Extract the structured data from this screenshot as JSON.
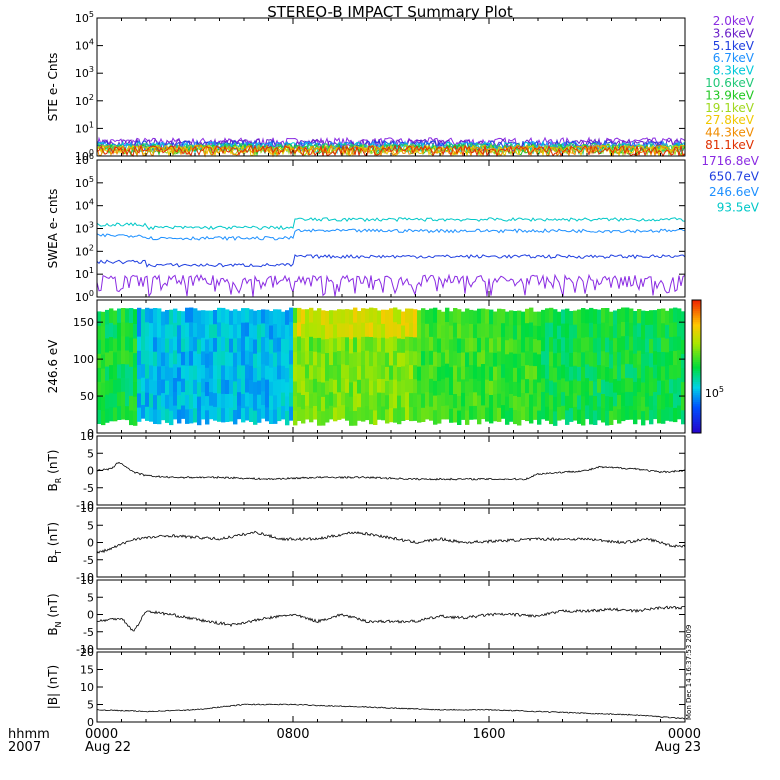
{
  "title": "STEREO-B IMPACT Summary Plot",
  "timestamp": "Mon Dec 14 16:37:53 2009",
  "time_axis": {
    "prefix": [
      "hhmm",
      "2007"
    ],
    "ticks": [
      {
        "t": 0,
        "label": "0000",
        "sub": "Aug 22"
      },
      {
        "t": 8,
        "label": "0800",
        "sub": ""
      },
      {
        "t": 16,
        "label": "1600",
        "sub": ""
      },
      {
        "t": 24,
        "label": "0000",
        "sub": "Aug 23"
      }
    ]
  },
  "chart_data": [
    {
      "id": "ste",
      "type": "line",
      "ylabel": "STE e- Cnts",
      "yscale": "log",
      "ylim": [
        1,
        100000
      ],
      "yticks": [
        {
          "v": 1,
          "label": "10^0"
        },
        {
          "v": 10,
          "label": "10^1"
        },
        {
          "v": 100,
          "label": "10^2"
        },
        {
          "v": 1000,
          "label": "10^3"
        },
        {
          "v": 10000,
          "label": "10^4"
        },
        {
          "v": 100000,
          "label": "10^5"
        }
      ],
      "series": [
        {
          "name": "2.0keV",
          "color": "#8a2be2",
          "level": 1.9
        },
        {
          "name": "3.6keV",
          "color": "#6a1fc8",
          "level": 1.7
        },
        {
          "name": "5.1keV",
          "color": "#1f3fe0",
          "level": 1.5
        },
        {
          "name": "6.7keV",
          "color": "#1e90ff",
          "level": 1.4
        },
        {
          "name": "8.3keV",
          "color": "#00c8d8",
          "level": 1.3
        },
        {
          "name": "10.6keV",
          "color": "#22c878",
          "level": 1.2
        },
        {
          "name": "13.9keV",
          "color": "#22c822",
          "level": 1.1
        },
        {
          "name": "19.1keV",
          "color": "#a0d81e",
          "level": 1.05
        },
        {
          "name": "27.8keV",
          "color": "#f0c800",
          "level": 1.02
        },
        {
          "name": "44.3keV",
          "color": "#f08c00",
          "level": 1.01
        },
        {
          "name": "81.1keV",
          "color": "#e03000",
          "level": 1.0
        }
      ]
    },
    {
      "id": "swea",
      "type": "line",
      "ylabel": "SWEA e- cnts",
      "yscale": "log",
      "ylim": [
        1,
        1000000
      ],
      "yticks": [
        {
          "v": 1,
          "label": "10^0"
        },
        {
          "v": 10,
          "label": "10^1"
        },
        {
          "v": 100,
          "label": "10^2"
        },
        {
          "v": 1000,
          "label": "10^3"
        },
        {
          "v": 10000,
          "label": "10^4"
        },
        {
          "v": 100000,
          "label": "10^5"
        },
        {
          "v": 1000000,
          "label": "10^6"
        }
      ],
      "series": [
        {
          "name": "1716.8eV",
          "color": "#8a2be2",
          "segments": [
            [
              0,
              8,
              5
            ],
            [
              8,
              24,
              5
            ]
          ]
        },
        {
          "name": "650.7eV",
          "color": "#1f3fe0",
          "segments": [
            [
              0,
              2,
              35
            ],
            [
              2,
              8,
              25
            ],
            [
              8,
              24,
              60
            ]
          ]
        },
        {
          "name": "246.6eV",
          "color": "#1e90ff",
          "segments": [
            [
              0,
              2,
              500
            ],
            [
              2,
              8,
              380
            ],
            [
              8,
              24,
              800
            ]
          ]
        },
        {
          "name": "93.5eV",
          "color": "#00c8c8",
          "segments": [
            [
              0,
              2,
              1500
            ],
            [
              2,
              8,
              1100
            ],
            [
              8,
              24,
              2500
            ]
          ]
        }
      ]
    },
    {
      "id": "pad",
      "type": "heatmap",
      "ylabel": "246.6 eV",
      "ylim": [
        0,
        180
      ],
      "yticks": [
        {
          "v": 0,
          "label": "0"
        },
        {
          "v": 50,
          "label": "50"
        },
        {
          "v": 100,
          "label": "100"
        },
        {
          "v": 150,
          "label": "150"
        }
      ],
      "colorbar_label": "10^5",
      "data_range": [
        10,
        170
      ]
    },
    {
      "id": "br",
      "type": "line",
      "ylabel": "B_R (nT)",
      "ylim": [
        -10,
        10
      ],
      "yticks": [
        {
          "v": -10,
          "label": "-10"
        },
        {
          "v": -5,
          "label": "-5"
        },
        {
          "v": 0,
          "label": "0"
        },
        {
          "v": 5,
          "label": "5"
        },
        {
          "v": 10,
          "label": "10"
        }
      ],
      "points": [
        [
          0,
          0
        ],
        [
          0.6,
          0.5
        ],
        [
          0.9,
          2.5
        ],
        [
          1.1,
          1.5
        ],
        [
          1.5,
          -0.5
        ],
        [
          2,
          -1.5
        ],
        [
          3,
          -2
        ],
        [
          5,
          -2
        ],
        [
          7,
          -2.5
        ],
        [
          9,
          -2
        ],
        [
          11,
          -2
        ],
        [
          13,
          -2.5
        ],
        [
          15,
          -2.5
        ],
        [
          17.5,
          -2.5
        ],
        [
          18,
          -1
        ],
        [
          20,
          0
        ],
        [
          20.5,
          1
        ],
        [
          22,
          0.5
        ],
        [
          23,
          -0.5
        ],
        [
          24,
          0
        ]
      ],
      "noise": 0.5
    },
    {
      "id": "bt",
      "type": "line",
      "ylabel": "B_T (nT)",
      "ylim": [
        -10,
        10
      ],
      "yticks": [
        {
          "v": -10,
          "label": "-10"
        },
        {
          "v": -5,
          "label": "-5"
        },
        {
          "v": 0,
          "label": "0"
        },
        {
          "v": 5,
          "label": "5"
        },
        {
          "v": 10,
          "label": "10"
        }
      ],
      "points": [
        [
          0,
          -3
        ],
        [
          0.5,
          -2
        ],
        [
          1.5,
          1
        ],
        [
          3,
          2
        ],
        [
          5,
          1
        ],
        [
          6.5,
          3
        ],
        [
          7.5,
          1
        ],
        [
          9,
          1
        ],
        [
          10.5,
          3
        ],
        [
          11.5,
          2
        ],
        [
          13,
          0
        ],
        [
          14,
          1
        ],
        [
          15,
          0
        ],
        [
          16.5,
          0.5
        ],
        [
          18,
          1
        ],
        [
          20,
          1
        ],
        [
          21.5,
          0
        ],
        [
          22.5,
          1
        ],
        [
          23.5,
          -1
        ],
        [
          24,
          -1
        ]
      ],
      "noise": 0.8
    },
    {
      "id": "bn",
      "type": "line",
      "ylabel": "B_N (nT)",
      "ylim": [
        -10,
        10
      ],
      "yticks": [
        {
          "v": -10,
          "label": "-10"
        },
        {
          "v": -5,
          "label": "-5"
        },
        {
          "v": 0,
          "label": "0"
        },
        {
          "v": 5,
          "label": "5"
        },
        {
          "v": 10,
          "label": "10"
        }
      ],
      "points": [
        [
          0,
          -2
        ],
        [
          1,
          -1
        ],
        [
          1.5,
          -5
        ],
        [
          2,
          1
        ],
        [
          3,
          0
        ],
        [
          4.5,
          -2
        ],
        [
          5.5,
          -3
        ],
        [
          7,
          -1
        ],
        [
          8,
          0
        ],
        [
          9,
          -2
        ],
        [
          10,
          0
        ],
        [
          11,
          -2
        ],
        [
          13,
          -2
        ],
        [
          14,
          -0.5
        ],
        [
          15,
          -1
        ],
        [
          16,
          0
        ],
        [
          17,
          0
        ],
        [
          18,
          -0.5
        ],
        [
          19,
          1
        ],
        [
          20,
          1
        ],
        [
          21,
          1.5
        ],
        [
          22,
          1
        ],
        [
          23,
          2
        ],
        [
          24,
          2
        ]
      ],
      "noise": 0.8
    },
    {
      "id": "bmag",
      "type": "line",
      "ylabel": "|B| (nT)",
      "ylim": [
        0,
        20
      ],
      "yticks": [
        {
          "v": 0,
          "label": "0"
        },
        {
          "v": 5,
          "label": "5"
        },
        {
          "v": 10,
          "label": "10"
        },
        {
          "v": 15,
          "label": "15"
        },
        {
          "v": 20,
          "label": "20"
        }
      ],
      "points": [
        [
          0,
          3.5
        ],
        [
          2,
          3
        ],
        [
          4,
          3.5
        ],
        [
          6,
          5
        ],
        [
          8,
          5
        ],
        [
          10,
          4.5
        ],
        [
          12,
          4
        ],
        [
          14,
          3.5
        ],
        [
          16,
          3.5
        ],
        [
          18,
          3
        ],
        [
          20,
          2.5
        ],
        [
          22,
          2
        ],
        [
          23,
          1.5
        ],
        [
          24,
          1
        ]
      ],
      "noise": 0.3
    }
  ]
}
